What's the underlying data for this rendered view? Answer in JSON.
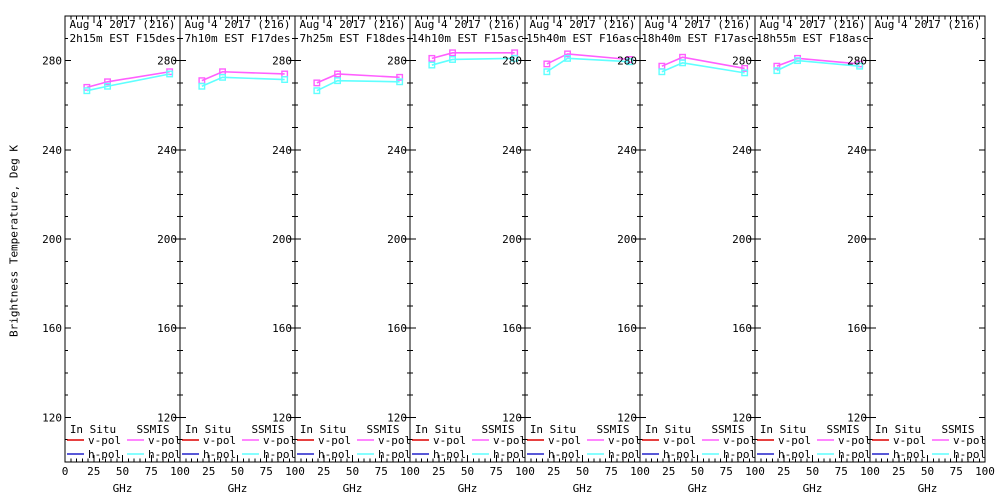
{
  "figure": {
    "background": "#ffffff",
    "axis_color": "#000000",
    "ylabel": "Brightness Temperature, Deg K",
    "xlabel": "GHz",
    "x_range": [
      0,
      100
    ],
    "y_range": [
      100,
      300
    ],
    "x_ticks": [
      0,
      25,
      50,
      75,
      100
    ],
    "x_minor_step": 5,
    "y_ticks": [
      120,
      160,
      200,
      240,
      280
    ],
    "y_minor_step": 10,
    "legend": {
      "groups": [
        {
          "header": "In Situ",
          "entries": [
            {
              "label": "v-pol",
              "color": "#dd0000"
            },
            {
              "label": "h-pol",
              "color": "#2222cc"
            }
          ]
        },
        {
          "header": "SSMIS",
          "entries": [
            {
              "label": "v-pol",
              "color": "#ff5fff"
            },
            {
              "label": "h-pol",
              "color": "#5fffff"
            }
          ]
        }
      ]
    }
  },
  "chart_data": [
    {
      "type": "line",
      "title": "Aug 4 2017 (216)",
      "subtitle": "2h15m EST F15des",
      "xlabel": "GHz",
      "ylabel": "Brightness Temperature, Deg K",
      "x": [
        19,
        37,
        91
      ],
      "xlim": [
        0,
        100
      ],
      "ylim": [
        100,
        300
      ],
      "series": [
        {
          "name": "SSMIS v-pol",
          "color": "#ff5fff",
          "marker": "square",
          "values": [
            268,
            270.5,
            275
          ]
        },
        {
          "name": "SSMIS h-pol",
          "color": "#5fffff",
          "marker": "square",
          "values": [
            266.5,
            268.5,
            274
          ]
        }
      ]
    },
    {
      "type": "line",
      "title": "Aug 4 2017 (216)",
      "subtitle": "7h10m EST F17des",
      "xlabel": "GHz",
      "x": [
        19,
        37,
        91
      ],
      "xlim": [
        0,
        100
      ],
      "ylim": [
        100,
        300
      ],
      "series": [
        {
          "name": "SSMIS v-pol",
          "color": "#ff5fff",
          "marker": "square",
          "values": [
            271,
            275,
            274
          ]
        },
        {
          "name": "SSMIS h-pol",
          "color": "#5fffff",
          "marker": "square",
          "values": [
            268.5,
            272.5,
            271.5
          ]
        }
      ]
    },
    {
      "type": "line",
      "title": "Aug 4 2017 (216)",
      "subtitle": "7h25m EST F18des",
      "xlabel": "GHz",
      "x": [
        19,
        37,
        91
      ],
      "xlim": [
        0,
        100
      ],
      "ylim": [
        100,
        300
      ],
      "series": [
        {
          "name": "SSMIS v-pol",
          "color": "#ff5fff",
          "marker": "square",
          "values": [
            270,
            274,
            272.5
          ]
        },
        {
          "name": "SSMIS h-pol",
          "color": "#5fffff",
          "marker": "square",
          "values": [
            266.5,
            271,
            270.5
          ]
        }
      ]
    },
    {
      "type": "line",
      "title": "Aug 4 2017 (216)",
      "subtitle": "14h10m EST F15asc",
      "xlabel": "GHz",
      "x": [
        19,
        37,
        91
      ],
      "xlim": [
        0,
        100
      ],
      "ylim": [
        100,
        300
      ],
      "series": [
        {
          "name": "SSMIS v-pol",
          "color": "#ff5fff",
          "marker": "square",
          "values": [
            281,
            283.5,
            283.5
          ]
        },
        {
          "name": "SSMIS h-pol",
          "color": "#5fffff",
          "marker": "square",
          "values": [
            278,
            280.5,
            281
          ]
        }
      ]
    },
    {
      "type": "line",
      "title": "Aug 4 2017 (216)",
      "subtitle": "15h40m EST F16asc",
      "xlabel": "GHz",
      "x": [
        19,
        37,
        91
      ],
      "xlim": [
        0,
        100
      ],
      "ylim": [
        100,
        300
      ],
      "series": [
        {
          "name": "SSMIS v-pol",
          "color": "#ff5fff",
          "marker": "square",
          "values": [
            278.5,
            283,
            280.5
          ]
        },
        {
          "name": "SSMIS h-pol",
          "color": "#5fffff",
          "marker": "square",
          "values": [
            275,
            281,
            279.5
          ]
        }
      ]
    },
    {
      "type": "line",
      "title": "Aug 4 2017 (216)",
      "subtitle": "18h40m EST F17asc",
      "xlabel": "GHz",
      "x": [
        19,
        37,
        91
      ],
      "xlim": [
        0,
        100
      ],
      "ylim": [
        100,
        300
      ],
      "series": [
        {
          "name": "SSMIS v-pol",
          "color": "#ff5fff",
          "marker": "square",
          "values": [
            277.5,
            281.5,
            276.5
          ]
        },
        {
          "name": "SSMIS h-pol",
          "color": "#5fffff",
          "marker": "square",
          "values": [
            275,
            279,
            274.5
          ]
        }
      ]
    },
    {
      "type": "line",
      "title": "Aug 4 2017 (216)",
      "subtitle": "18h55m EST F18asc",
      "xlabel": "GHz",
      "x": [
        19,
        37,
        91
      ],
      "xlim": [
        0,
        100
      ],
      "ylim": [
        100,
        300
      ],
      "series": [
        {
          "name": "SSMIS v-pol",
          "color": "#ff5fff",
          "marker": "square",
          "values": [
            277.5,
            281,
            278.5
          ]
        },
        {
          "name": "SSMIS h-pol",
          "color": "#5fffff",
          "marker": "square",
          "values": [
            275.5,
            280,
            277.5
          ]
        }
      ]
    },
    {
      "type": "line",
      "title": "Aug 4 2017 (216)",
      "subtitle": "",
      "xlabel": "GHz",
      "x": [
        19,
        37,
        91
      ],
      "xlim": [
        0,
        100
      ],
      "ylim": [
        100,
        300
      ],
      "series": []
    }
  ]
}
